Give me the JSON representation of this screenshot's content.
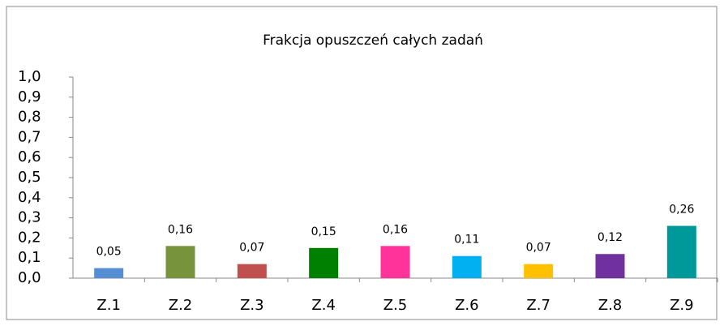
{
  "chart_data": {
    "type": "bar",
    "title": "Frakcja opuszczeń całych zadań",
    "categories": [
      "Z.1",
      "Z.2",
      "Z.3",
      "Z.4",
      "Z.5",
      "Z.6",
      "Z.7",
      "Z.8",
      "Z.9"
    ],
    "values": [
      0.05,
      0.16,
      0.07,
      0.15,
      0.16,
      0.11,
      0.07,
      0.12,
      0.26
    ],
    "value_labels": [
      "0,05",
      "0,16",
      "0,07",
      "0,15",
      "0,16",
      "0,11",
      "0,07",
      "0,12",
      "0,26"
    ],
    "colors": [
      "#558ed5",
      "#77933c",
      "#c0504d",
      "#008000",
      "#ff3399",
      "#00b0f0",
      "#ffc000",
      "#7030a0",
      "#009999"
    ],
    "ylim": [
      0,
      1
    ],
    "yticks": [
      {
        "value": 0,
        "label": "0,0"
      },
      {
        "value": 0.1,
        "label": "0,1"
      },
      {
        "value": 0.2,
        "label": "0,2"
      },
      {
        "value": 0.3,
        "label": "0,3"
      },
      {
        "value": 0.4,
        "label": "0,4"
      },
      {
        "value": 0.5,
        "label": "0,5"
      },
      {
        "value": 0.6,
        "label": "0,6"
      },
      {
        "value": 0.7,
        "label": "0,7"
      },
      {
        "value": 0.8,
        "label": "0,8"
      },
      {
        "value": 0.9,
        "label": "0,9"
      },
      {
        "value": 1,
        "label": "1,0"
      }
    ],
    "grid": false
  }
}
